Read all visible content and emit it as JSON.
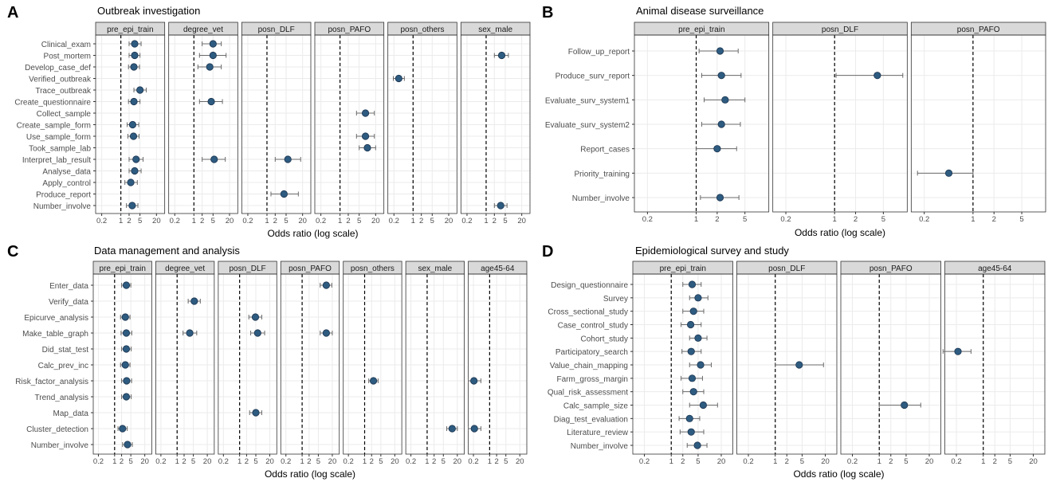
{
  "figure": {
    "x_axis_label": "Odds ratio (log scale)"
  },
  "colors": {
    "point": "#2e5b80",
    "point_stroke": "#1c3550",
    "errorbar": "#6a6a6a",
    "strip": "#d9d9d9",
    "grid": "#ebebeb",
    "text": "#4d4d4d"
  },
  "chart_data": [
    {
      "panel": "A",
      "type": "forest",
      "title": "Outbreak investigation",
      "xlabel": "Odds ratio (log scale)",
      "xscale": "log",
      "xlim": [
        0.12,
        40
      ],
      "xticks": [
        0.2,
        1,
        2,
        5,
        20
      ],
      "reference_line": 1,
      "rows": [
        "Clinical_exam",
        "Post_mortem",
        "Develop_case_def",
        "Verified_outbreak",
        "Trace_outbreak",
        "Create_questionnaire",
        "Collect_sample",
        "Create_sample_form",
        "Use_sample_form",
        "Took_sample_lab",
        "Interpret_lab_result",
        "Analyse_data",
        "Apply_control",
        "Produce_report",
        "Number_involve"
      ],
      "facets": [
        {
          "name": "pre_epi_train",
          "points": [
            {
              "row": "Clinical_exam",
              "or": 3.2,
              "lo": 2.0,
              "hi": 5.5
            },
            {
              "row": "Post_mortem",
              "or": 3.2,
              "lo": 2.0,
              "hi": 5.0
            },
            {
              "row": "Develop_case_def",
              "or": 3.0,
              "lo": 1.9,
              "hi": 4.8
            },
            {
              "row": "Trace_outbreak",
              "or": 5.0,
              "lo": 3.0,
              "hi": 8.5
            },
            {
              "row": "Create_questionnaire",
              "or": 3.0,
              "lo": 1.9,
              "hi": 5.0
            },
            {
              "row": "Create_sample_form",
              "or": 2.7,
              "lo": 1.7,
              "hi": 4.5
            },
            {
              "row": "Use_sample_form",
              "or": 2.9,
              "lo": 1.8,
              "hi": 4.6
            },
            {
              "row": "Interpret_lab_result",
              "or": 3.6,
              "lo": 2.0,
              "hi": 6.5
            },
            {
              "row": "Analyse_data",
              "or": 3.2,
              "lo": 2.0,
              "hi": 5.5
            },
            {
              "row": "Apply_control",
              "or": 2.3,
              "lo": 1.4,
              "hi": 4.0
            },
            {
              "row": "Number_involve",
              "or": 2.6,
              "lo": 1.6,
              "hi": 4.2
            }
          ]
        },
        {
          "name": "degree_vet",
          "points": [
            {
              "row": "Clinical_exam",
              "or": 5.0,
              "lo": 2.0,
              "hi": 10.0
            },
            {
              "row": "Post_mortem",
              "or": 5.0,
              "lo": 1.6,
              "hi": 15.0
            },
            {
              "row": "Develop_case_def",
              "or": 3.8,
              "lo": 1.4,
              "hi": 10.0
            },
            {
              "row": "Create_questionnaire",
              "or": 4.3,
              "lo": 1.6,
              "hi": 11.0
            },
            {
              "row": "Interpret_lab_result",
              "or": 5.5,
              "lo": 2.0,
              "hi": 14.0
            }
          ]
        },
        {
          "name": "posn_DLF",
          "points": [
            {
              "row": "Interpret_lab_result",
              "or": 5.8,
              "lo": 2.0,
              "hi": 17.0
            },
            {
              "row": "Produce_report",
              "or": 4.2,
              "lo": 1.4,
              "hi": 14.0
            }
          ]
        },
        {
          "name": "posn_PAFO",
          "points": [
            {
              "row": "Collect_sample",
              "or": 8.5,
              "lo": 4.0,
              "hi": 18.0
            },
            {
              "row": "Use_sample_form",
              "or": 8.5,
              "lo": 4.0,
              "hi": 18.0
            },
            {
              "row": "Took_sample_lab",
              "or": 10.0,
              "lo": 5.0,
              "hi": 20.0
            }
          ]
        },
        {
          "name": "posn_others",
          "points": [
            {
              "row": "Verified_outbreak",
              "or": 0.3,
              "lo": 0.19,
              "hi": 0.48
            }
          ]
        },
        {
          "name": "sex_male",
          "points": [
            {
              "row": "Post_mortem",
              "or": 3.7,
              "lo": 2.0,
              "hi": 6.5
            },
            {
              "row": "Number_involve",
              "or": 3.4,
              "lo": 2.0,
              "hi": 5.8
            }
          ]
        }
      ]
    },
    {
      "panel": "B",
      "type": "forest",
      "title": "Animal disease surveillance",
      "xlabel": "Odds ratio (log scale)",
      "xscale": "log",
      "xlim": [
        0.13,
        11
      ],
      "xticks": [
        0.2,
        1,
        2,
        5
      ],
      "reference_line": 1,
      "rows": [
        "Follow_up_report",
        "Produce_surv_report",
        "Evaluate_surv_system1",
        "Evaluate_surv_system2",
        "Report_cases",
        "Priority_training",
        "Number_involve"
      ],
      "facets": [
        {
          "name": "pre_epi_train",
          "points": [
            {
              "row": "Follow_up_report",
              "or": 2.2,
              "lo": 1.1,
              "hi": 4.0
            },
            {
              "row": "Produce_surv_report",
              "or": 2.3,
              "lo": 1.2,
              "hi": 4.4
            },
            {
              "row": "Evaluate_surv_system1",
              "or": 2.6,
              "lo": 1.3,
              "hi": 5.0
            },
            {
              "row": "Evaluate_surv_system2",
              "or": 2.3,
              "lo": 1.2,
              "hi": 4.3
            },
            {
              "row": "Report_cases",
              "or": 2.0,
              "lo": 1.0,
              "hi": 3.8
            },
            {
              "row": "Number_involve",
              "or": 2.2,
              "lo": 1.15,
              "hi": 4.1
            }
          ]
        },
        {
          "name": "posn_DLF",
          "points": [
            {
              "row": "Produce_surv_report",
              "or": 4.1,
              "lo": 1.05,
              "hi": 9.5
            }
          ]
        },
        {
          "name": "posn_PAFO",
          "points": [
            {
              "row": "Priority_training",
              "or": 0.45,
              "lo": 0.16,
              "hi": 1.0
            }
          ]
        }
      ]
    },
    {
      "panel": "C",
      "type": "forest",
      "title": "Data management and analysis",
      "xlabel": "Odds ratio (log scale)",
      "xscale": "log",
      "xlim": [
        0.12,
        40
      ],
      "xticks": [
        0.2,
        1,
        2,
        5,
        20
      ],
      "reference_line": 1,
      "rows": [
        "Enter_data",
        "Verify_data",
        "Epicurve_analysis",
        "Make_table_graph",
        "Did_stat_test",
        "Calc_prev_inc",
        "Risk_factor_analysis",
        "Trend_analysis",
        "Map_data",
        "Cluster_detection",
        "Number_involve"
      ],
      "facets": [
        {
          "name": "pre_epi_train",
          "points": [
            {
              "row": "Enter_data",
              "or": 3.2,
              "lo": 2.0,
              "hi": 5.0
            },
            {
              "row": "Epicurve_analysis",
              "or": 2.9,
              "lo": 1.8,
              "hi": 4.6
            },
            {
              "row": "Make_table_graph",
              "or": 3.2,
              "lo": 1.9,
              "hi": 5.5
            },
            {
              "row": "Did_stat_test",
              "or": 3.2,
              "lo": 2.0,
              "hi": 5.2
            },
            {
              "row": "Calc_prev_inc",
              "or": 2.9,
              "lo": 1.8,
              "hi": 4.6
            },
            {
              "row": "Risk_factor_analysis",
              "or": 3.3,
              "lo": 2.0,
              "hi": 5.4
            },
            {
              "row": "Trend_analysis",
              "or": 3.2,
              "lo": 2.0,
              "hi": 5.2
            },
            {
              "row": "Cluster_detection",
              "or": 2.2,
              "lo": 1.4,
              "hi": 3.5
            },
            {
              "row": "Number_involve",
              "or": 3.6,
              "lo": 2.2,
              "hi": 5.8
            }
          ]
        },
        {
          "name": "degree_vet",
          "points": [
            {
              "row": "Verify_data",
              "or": 5.5,
              "lo": 3.0,
              "hi": 10.0
            },
            {
              "row": "Make_table_graph",
              "or": 3.5,
              "lo": 1.8,
              "hi": 7.0
            }
          ]
        },
        {
          "name": "posn_DLF",
          "points": [
            {
              "row": "Epicurve_analysis",
              "or": 4.8,
              "lo": 2.5,
              "hi": 9.0
            },
            {
              "row": "Make_table_graph",
              "or": 6.0,
              "lo": 3.0,
              "hi": 12.0
            },
            {
              "row": "Map_data",
              "or": 5.0,
              "lo": 2.7,
              "hi": 9.0
            }
          ]
        },
        {
          "name": "posn_PAFO",
          "points": [
            {
              "row": "Enter_data",
              "or": 11.0,
              "lo": 6.0,
              "hi": 19.0
            },
            {
              "row": "Make_table_graph",
              "or": 11.0,
              "lo": 6.0,
              "hi": 20.0
            }
          ]
        },
        {
          "name": "posn_others",
          "points": [
            {
              "row": "Risk_factor_analysis",
              "or": 2.4,
              "lo": 1.5,
              "hi": 3.8
            }
          ]
        },
        {
          "name": "sex_male",
          "points": [
            {
              "row": "Cluster_detection",
              "or": 12.0,
              "lo": 7.0,
              "hi": 20.0
            }
          ]
        },
        {
          "name": "age45-64",
          "points": [
            {
              "row": "Risk_factor_analysis",
              "or": 0.21,
              "lo": 0.12,
              "hi": 0.42
            },
            {
              "row": "Cluster_detection",
              "or": 0.22,
              "lo": 0.12,
              "hi": 0.42
            }
          ]
        }
      ]
    },
    {
      "panel": "D",
      "type": "forest",
      "title": "Epidemiological survey and study",
      "xlabel": "Odds ratio (log scale)",
      "xscale": "log",
      "xlim": [
        0.1,
        40
      ],
      "xticks": [
        0.2,
        1,
        2,
        5,
        20
      ],
      "reference_line": 1,
      "rows": [
        "Design_questionnaire",
        "Survey",
        "Cross_sectional_study",
        "Case_control_study",
        "Cohort_study",
        "Participatory_search",
        "Value_chain_mapping",
        "Farm_gross_margin",
        "Qual_risk_assessment",
        "Calc_sample_size",
        "Diag_test_evaluation",
        "Literature_review",
        "Number_involve"
      ],
      "facets": [
        {
          "name": "pre_epi_train",
          "points": [
            {
              "row": "Design_questionnaire",
              "or": 3.5,
              "lo": 2.0,
              "hi": 6.0
            },
            {
              "row": "Survey",
              "or": 5.0,
              "lo": 3.0,
              "hi": 9.0
            },
            {
              "row": "Cross_sectional_study",
              "or": 3.8,
              "lo": 2.0,
              "hi": 7.0
            },
            {
              "row": "Case_control_study",
              "or": 3.2,
              "lo": 1.8,
              "hi": 6.0
            },
            {
              "row": "Cohort_study",
              "or": 5.0,
              "lo": 3.0,
              "hi": 8.5
            },
            {
              "row": "Participatory_search",
              "or": 3.3,
              "lo": 1.9,
              "hi": 6.0
            },
            {
              "row": "Value_chain_mapping",
              "or": 5.8,
              "lo": 3.0,
              "hi": 11.0
            },
            {
              "row": "Farm_gross_margin",
              "or": 3.5,
              "lo": 1.8,
              "hi": 6.5
            },
            {
              "row": "Qual_risk_assessment",
              "or": 3.8,
              "lo": 2.0,
              "hi": 7.0
            },
            {
              "row": "Calc_sample_size",
              "or": 6.8,
              "lo": 3.0,
              "hi": 16.0
            },
            {
              "row": "Diag_test_evaluation",
              "or": 3.0,
              "lo": 1.6,
              "hi": 5.5
            },
            {
              "row": "Literature_review",
              "or": 3.3,
              "lo": 1.7,
              "hi": 7.0
            },
            {
              "row": "Number_involve",
              "or": 4.8,
              "lo": 2.6,
              "hi": 8.5
            }
          ]
        },
        {
          "name": "posn_DLF",
          "points": [
            {
              "row": "Value_chain_mapping",
              "or": 4.2,
              "lo": 1.0,
              "hi": 18.0
            }
          ]
        },
        {
          "name": "posn_PAFO",
          "points": [
            {
              "row": "Calc_sample_size",
              "or": 4.5,
              "lo": 1.0,
              "hi": 12.0
            }
          ]
        },
        {
          "name": "age45-64",
          "points": [
            {
              "row": "Participatory_search",
              "or": 0.22,
              "lo": 0.09,
              "hi": 0.48
            }
          ]
        }
      ]
    }
  ]
}
